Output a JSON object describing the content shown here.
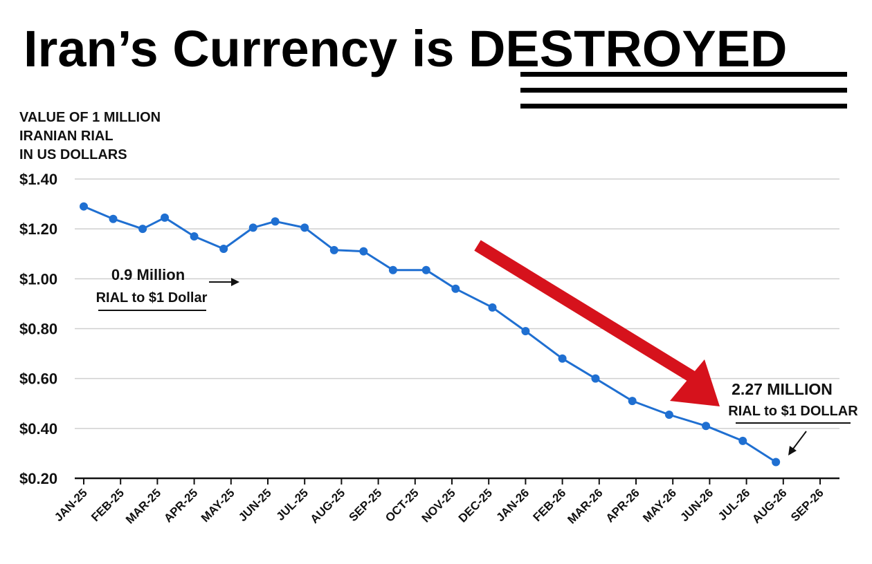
{
  "title_prefix": "Iran’s Currency is ",
  "title_emphasis": "DESTROYED",
  "colors": {
    "line": "#1f6fd1",
    "marker": "#1f6fd1",
    "arrow": "#d6121c",
    "grid": "#cfcfcf",
    "text": "#111111"
  },
  "chart_data": {
    "type": "line",
    "ylabel_lines": [
      "VALUE OF 1 MILLION",
      "IRANIAN RIAL",
      "IN US DOLLARS"
    ],
    "categories": [
      "JAN-25",
      "FEB-25",
      "MAR-25",
      "APR-25",
      "MAY-25",
      "JUN-25",
      "JUL-25",
      "AUG-25",
      "SEP-25",
      "OCT-25",
      "NOV-25",
      "DEC-25",
      "JAN-26",
      "FEB-26",
      "MAR-26",
      "APR-26",
      "MAY-26",
      "JUN-26",
      "JUL-26",
      "AUG-26",
      "SEP-26"
    ],
    "y_tick_labels": [
      "$0.20",
      "$0.40",
      "$0.60",
      "$0.80",
      "$1.00",
      "$1.20",
      "$1.40"
    ],
    "y_tick_values": [
      0.2,
      0.4,
      0.6,
      0.8,
      1.0,
      1.2,
      1.4
    ],
    "ylim": [
      0.2,
      1.4
    ],
    "grid": true,
    "series": [
      {
        "points": [
          {
            "x": 0.0,
            "y": 1.29
          },
          {
            "x": 0.8,
            "y": 1.24
          },
          {
            "x": 1.6,
            "y": 1.2
          },
          {
            "x": 2.2,
            "y": 1.245
          },
          {
            "x": 3.0,
            "y": 1.17
          },
          {
            "x": 3.8,
            "y": 1.12
          },
          {
            "x": 4.6,
            "y": 1.205
          },
          {
            "x": 5.2,
            "y": 1.23
          },
          {
            "x": 6.0,
            "y": 1.205
          },
          {
            "x": 6.8,
            "y": 1.115
          },
          {
            "x": 7.6,
            "y": 1.11
          },
          {
            "x": 8.4,
            "y": 1.035
          },
          {
            "x": 9.3,
            "y": 1.035
          },
          {
            "x": 10.1,
            "y": 0.96
          },
          {
            "x": 11.1,
            "y": 0.885
          },
          {
            "x": 12.0,
            "y": 0.79
          },
          {
            "x": 13.0,
            "y": 0.68
          },
          {
            "x": 13.9,
            "y": 0.6
          },
          {
            "x": 14.9,
            "y": 0.51
          },
          {
            "x": 15.9,
            "y": 0.455
          },
          {
            "x": 16.9,
            "y": 0.41
          },
          {
            "x": 17.9,
            "y": 0.35
          },
          {
            "x": 18.8,
            "y": 0.265
          }
        ]
      }
    ],
    "annotations": [
      {
        "lines": [
          "0.9 Million",
          "RIAL to $1 Dollar"
        ]
      },
      {
        "lines": [
          "2.27 MILLION",
          "RIAL to $1 DOLLAR"
        ]
      }
    ]
  }
}
